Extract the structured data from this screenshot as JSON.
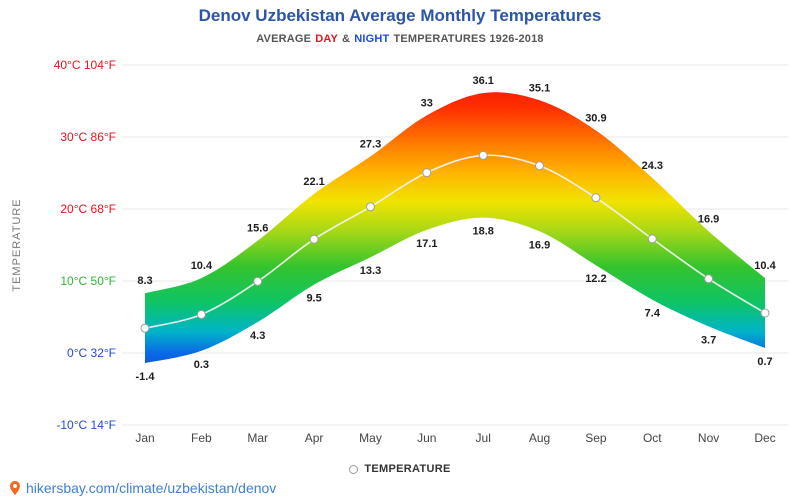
{
  "header": {
    "subtitle": {
      "prefix": "AVERAGE",
      "day": "DAY",
      "joiner": "&",
      "night": "NIGHT",
      "suffix": "TEMPERATURES 1926-2018"
    }
  },
  "chart_data": {
    "type": "area",
    "title": "Denov Uzbekistan Average Monthly Temperatures",
    "subtitle": "AVERAGE DAY & NIGHT TEMPERATURES 1926-2018",
    "categories": [
      "Jan",
      "Feb",
      "Mar",
      "Apr",
      "May",
      "Jun",
      "Jul",
      "Aug",
      "Sep",
      "Oct",
      "Nov",
      "Dec"
    ],
    "series": [
      {
        "name": "day",
        "values": [
          8.3,
          10.4,
          15.6,
          22.1,
          27.3,
          33,
          36.1,
          35.1,
          30.9,
          24.3,
          16.9,
          10.4
        ]
      },
      {
        "name": "night",
        "values": [
          -1.4,
          0.3,
          4.3,
          9.5,
          13.3,
          17.1,
          18.8,
          16.9,
          12.2,
          7.4,
          3.7,
          0.7
        ]
      }
    ],
    "ylabel": "TEMPERATURE",
    "xlabel": "",
    "ylim": [
      -10,
      40
    ],
    "grid": true,
    "legend_position": "bottom",
    "legend_label": "TEMPERATURE",
    "yticks": [
      {
        "celsius": "40°C",
        "fahrenheit": "104°F",
        "value": 40,
        "color": "#e8141e"
      },
      {
        "celsius": "30°C",
        "fahrenheit": "86°F",
        "value": 30,
        "color": "#e8141e"
      },
      {
        "celsius": "20°C",
        "fahrenheit": "68°F",
        "value": 20,
        "color": "#e8141e"
      },
      {
        "celsius": "10°C",
        "fahrenheit": "50°F",
        "value": 10,
        "color": "#2eb82e"
      },
      {
        "celsius": "0°C",
        "fahrenheit": "32°F",
        "value": 0,
        "color": "#2149e0"
      },
      {
        "celsius": "-10°C",
        "fahrenheit": "14°F",
        "value": -10,
        "color": "#2149e0"
      }
    ],
    "gradient_stops": [
      {
        "t": 40,
        "color": "#f00505"
      },
      {
        "t": 34,
        "color": "#ff3000"
      },
      {
        "t": 29,
        "color": "#ff7d00"
      },
      {
        "t": 25,
        "color": "#ffb400"
      },
      {
        "t": 21,
        "color": "#f0e400"
      },
      {
        "t": 17,
        "color": "#a8d816"
      },
      {
        "t": 12,
        "color": "#35c32e"
      },
      {
        "t": 7,
        "color": "#0ec465"
      },
      {
        "t": 3,
        "color": "#00b4c8"
      },
      {
        "t": 0,
        "color": "#0a6ae6"
      },
      {
        "t": -4,
        "color": "#0a40d4"
      },
      {
        "t": -10,
        "color": "#0a28b4"
      }
    ]
  },
  "footer": {
    "link": "hikersbay.com/climate/uzbekistan/denov"
  },
  "colors": {
    "title": "#2d55a5",
    "day_red": "#e8141e",
    "night_blue": "#2149e0",
    "axis_green": "#2eb82e",
    "link_blue": "#3b7fd9"
  }
}
